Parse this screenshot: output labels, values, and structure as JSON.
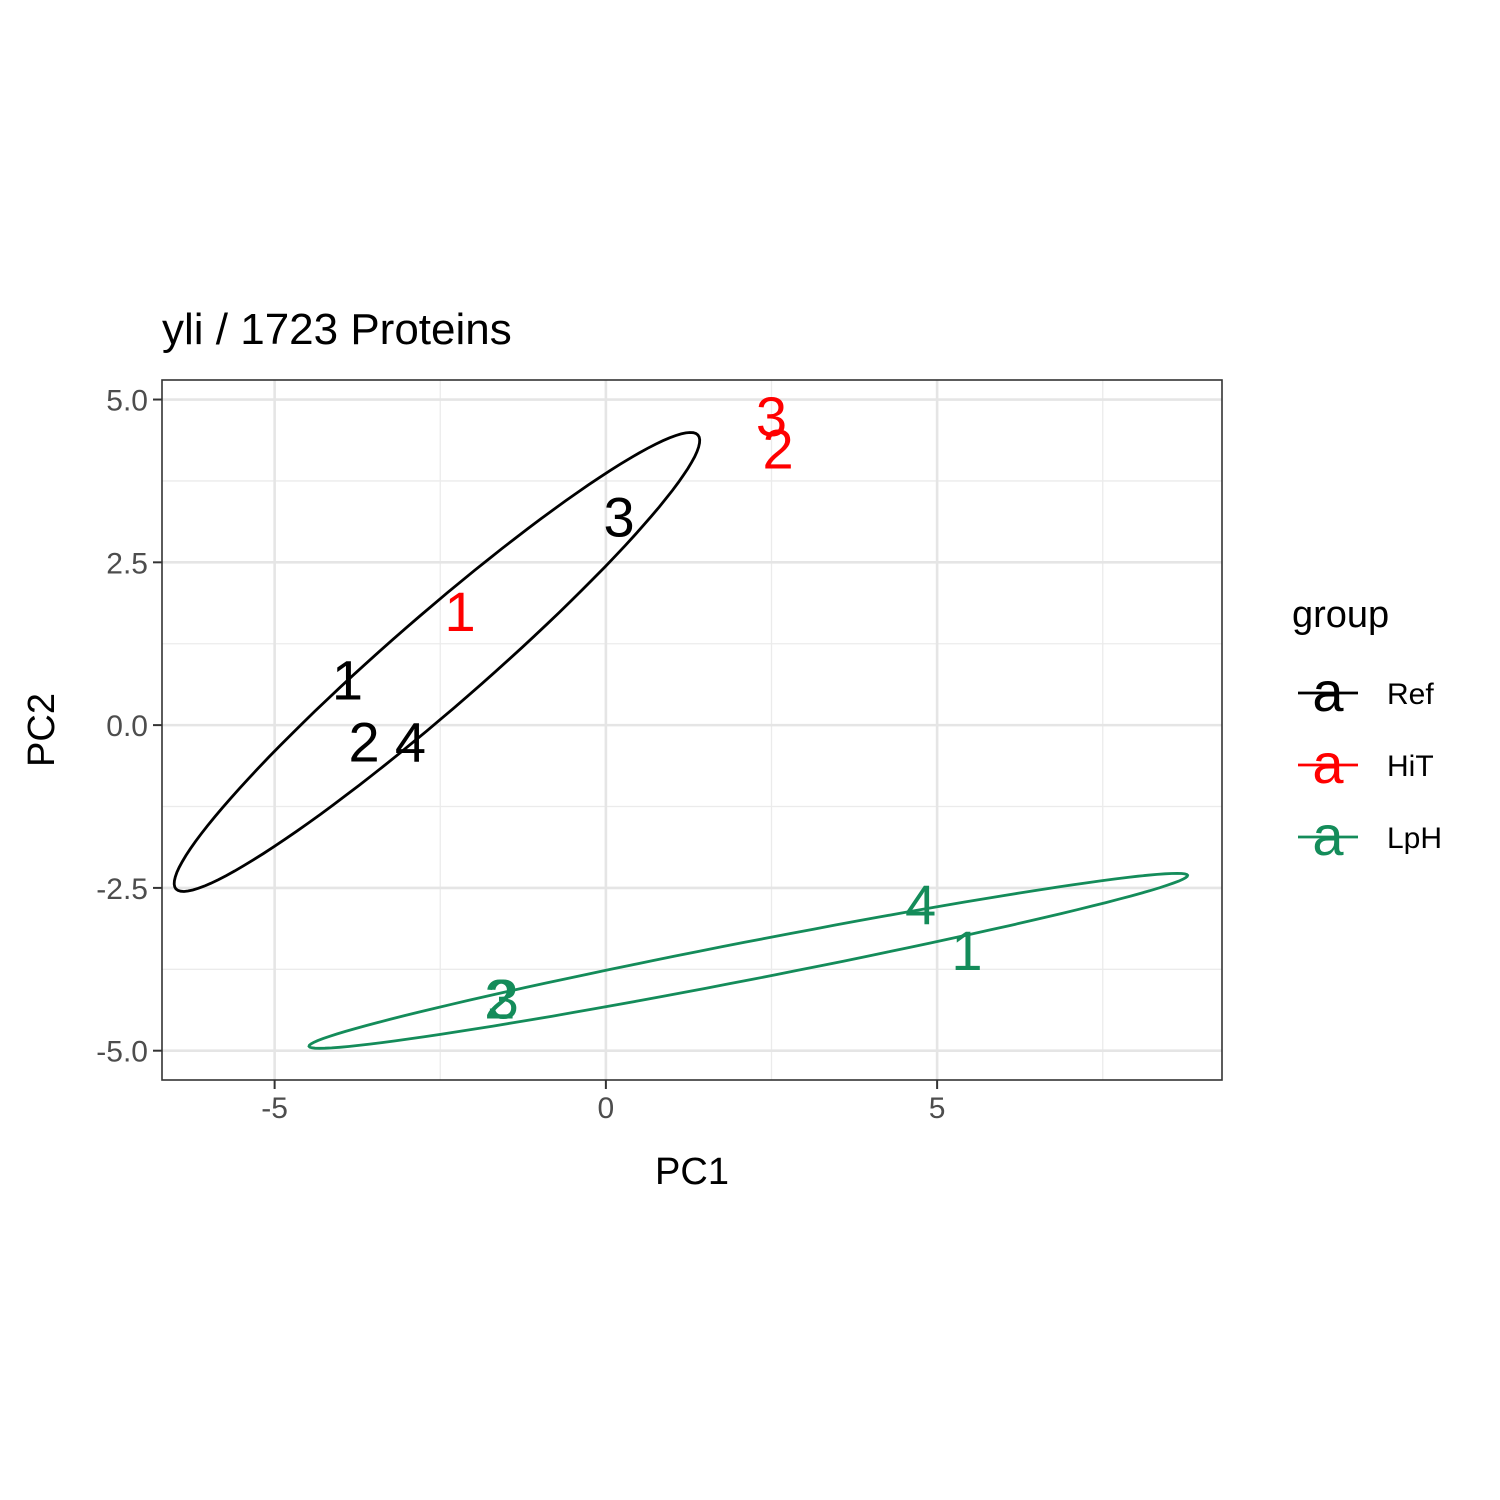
{
  "chart_data": {
    "type": "scatter",
    "title": "yli /  1723  Proteins",
    "xlabel": "PC1",
    "ylabel": "PC2",
    "xlim": [
      -6.7,
      9.3
    ],
    "ylim": [
      -5.45,
      5.3
    ],
    "xticks": [
      -5,
      0,
      5
    ],
    "xtick_labels": [
      "-5",
      "0",
      "5"
    ],
    "yticks": [
      -5.0,
      -2.5,
      0.0,
      2.5,
      5.0
    ],
    "ytick_labels": [
      "-5.0",
      "-2.5",
      "0.0",
      "2.5",
      "5.0"
    ],
    "grid": true,
    "legend": {
      "title": "group",
      "placement": "right"
    },
    "series": [
      {
        "name": "Ref",
        "color": "#000000",
        "points": [
          {
            "label": "1",
            "x": -3.9,
            "y": 0.7
          },
          {
            "label": "2",
            "x": -3.65,
            "y": -0.25
          },
          {
            "label": "4",
            "x": -2.95,
            "y": -0.25
          },
          {
            "label": "3",
            "x": 0.2,
            "y": 3.2
          }
        ],
        "ellipse": {
          "cx": -2.55,
          "cy": 0.97,
          "a": 5.26,
          "b": 0.7,
          "angle_deg": 41.5
        }
      },
      {
        "name": "HiT",
        "color": "#ff0000",
        "points": [
          {
            "label": "1",
            "x": -2.2,
            "y": 1.75
          },
          {
            "label": "3",
            "x": 2.5,
            "y": 4.75
          },
          {
            "label": "2",
            "x": 2.6,
            "y": 4.25
          }
        ]
      },
      {
        "name": "LpH",
        "color": "#148c5a",
        "points": [
          {
            "label": "4",
            "x": 4.75,
            "y": -2.75
          },
          {
            "label": "1",
            "x": 5.45,
            "y": -3.45
          },
          {
            "label": "2",
            "x": -1.6,
            "y": -4.2
          },
          {
            "label": "3",
            "x": -1.55,
            "y": -4.2
          }
        ],
        "ellipse": {
          "cx": 2.15,
          "cy": -3.62,
          "a": 6.76,
          "b": 0.29,
          "angle_deg": 11.2
        }
      }
    ]
  }
}
